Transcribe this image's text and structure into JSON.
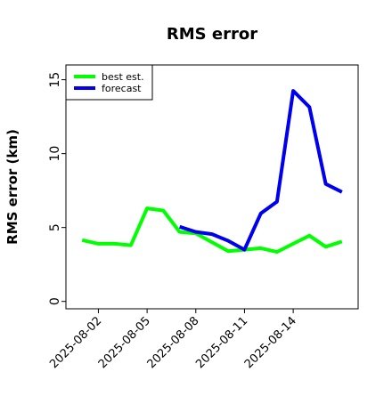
{
  "chart_data": {
    "type": "line",
    "title": "RMS error",
    "xlabel": "",
    "ylabel": "RMS error (km)",
    "x": [
      "2025-08-01",
      "2025-08-02",
      "2025-08-03",
      "2025-08-04",
      "2025-08-05",
      "2025-08-06",
      "2025-08-07",
      "2025-08-08",
      "2025-08-09",
      "2025-08-10",
      "2025-08-11",
      "2025-08-12",
      "2025-08-13",
      "2025-08-14",
      "2025-08-15",
      "2025-08-16",
      "2025-08-17"
    ],
    "x_ticks": [
      "2025-08-02",
      "2025-08-05",
      "2025-08-08",
      "2025-08-11",
      "2025-08-14"
    ],
    "xlim": [
      "2025-07-31",
      "2025-08-18"
    ],
    "ylim": [
      -0.5,
      16
    ],
    "y_ticks": [
      0,
      5,
      10,
      15
    ],
    "grid": false,
    "legend_position": "top-left",
    "series": [
      {
        "name": "best est.",
        "color": "#00ff00",
        "values": [
          4.15,
          3.9,
          3.9,
          3.8,
          6.3,
          6.15,
          4.7,
          4.6,
          4.0,
          3.4,
          3.5,
          3.6,
          3.35,
          3.9,
          4.45,
          3.7,
          4.05
        ]
      },
      {
        "name": "forecast",
        "color": "#0000ee",
        "values": [
          null,
          null,
          null,
          null,
          null,
          null,
          5.05,
          4.7,
          4.55,
          4.1,
          3.5,
          5.95,
          6.75,
          14.25,
          13.15,
          7.95,
          7.4
        ]
      }
    ]
  }
}
